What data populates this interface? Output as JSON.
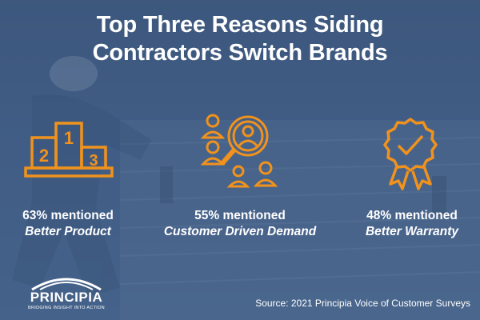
{
  "title": {
    "line1": "Top Three Reasons Siding",
    "line2": "Contractors Switch Brands"
  },
  "colors": {
    "accent": "#f0921c",
    "text": "#ffffff",
    "overlay": "#3f5b82"
  },
  "reasons": [
    {
      "icon": "podium-icon",
      "percent_text": "63% mentioned",
      "reason": "Better Product"
    },
    {
      "icon": "search-people-icon",
      "percent_text": "55% mentioned",
      "reason": "Customer Driven Demand"
    },
    {
      "icon": "award-ribbon-icon",
      "percent_text": "48% mentioned",
      "reason": "Better Warranty"
    }
  ],
  "podium": {
    "first": "1",
    "second": "2",
    "third": "3"
  },
  "logo": {
    "name": "PRINCIPIA",
    "tagline": "BRIDGING INSIGHT INTO ACTION"
  },
  "source": "Source: 2021 Principia Voice of Customer Surveys"
}
